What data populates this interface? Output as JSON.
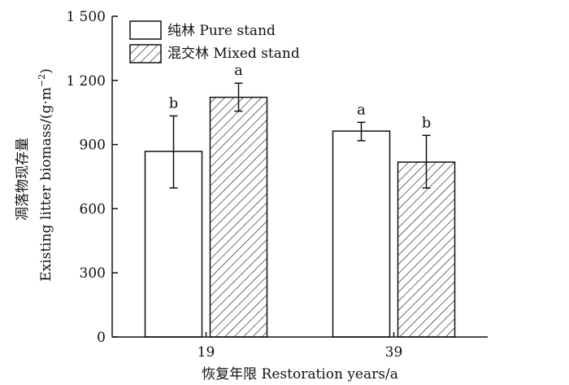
{
  "chart_data": {
    "type": "bar",
    "xlabel": "恢复年限 Restoration years/a",
    "ylabel_cn": "凋落物现存量",
    "ylabel_en": "Existing litter biomass/(g·m",
    "ylabel_sup": "−2",
    "ylabel_close": ")",
    "ylim": [
      0,
      1500
    ],
    "yticks": [
      0,
      300,
      600,
      900,
      1200,
      1500
    ],
    "ytick_labels": [
      "0",
      "300",
      "600",
      "900",
      "1 200",
      "1 500"
    ],
    "categories": [
      "19",
      "39"
    ],
    "legend_position": "top-left",
    "grid": false,
    "series": [
      {
        "name": "纯林 Pure stand",
        "fill": "hollow",
        "values": [
          868,
          963
        ],
        "err_low": [
          697,
          918
        ],
        "err_high": [
          1034,
          1004
        ],
        "sig": [
          "b",
          "a"
        ]
      },
      {
        "name": "混交林 Mixed stand",
        "fill": "hatched",
        "values": [
          1121,
          818
        ],
        "err_low": [
          1056,
          697
        ],
        "err_high": [
          1187,
          943
        ],
        "sig": [
          "a",
          "b"
        ]
      }
    ]
  }
}
